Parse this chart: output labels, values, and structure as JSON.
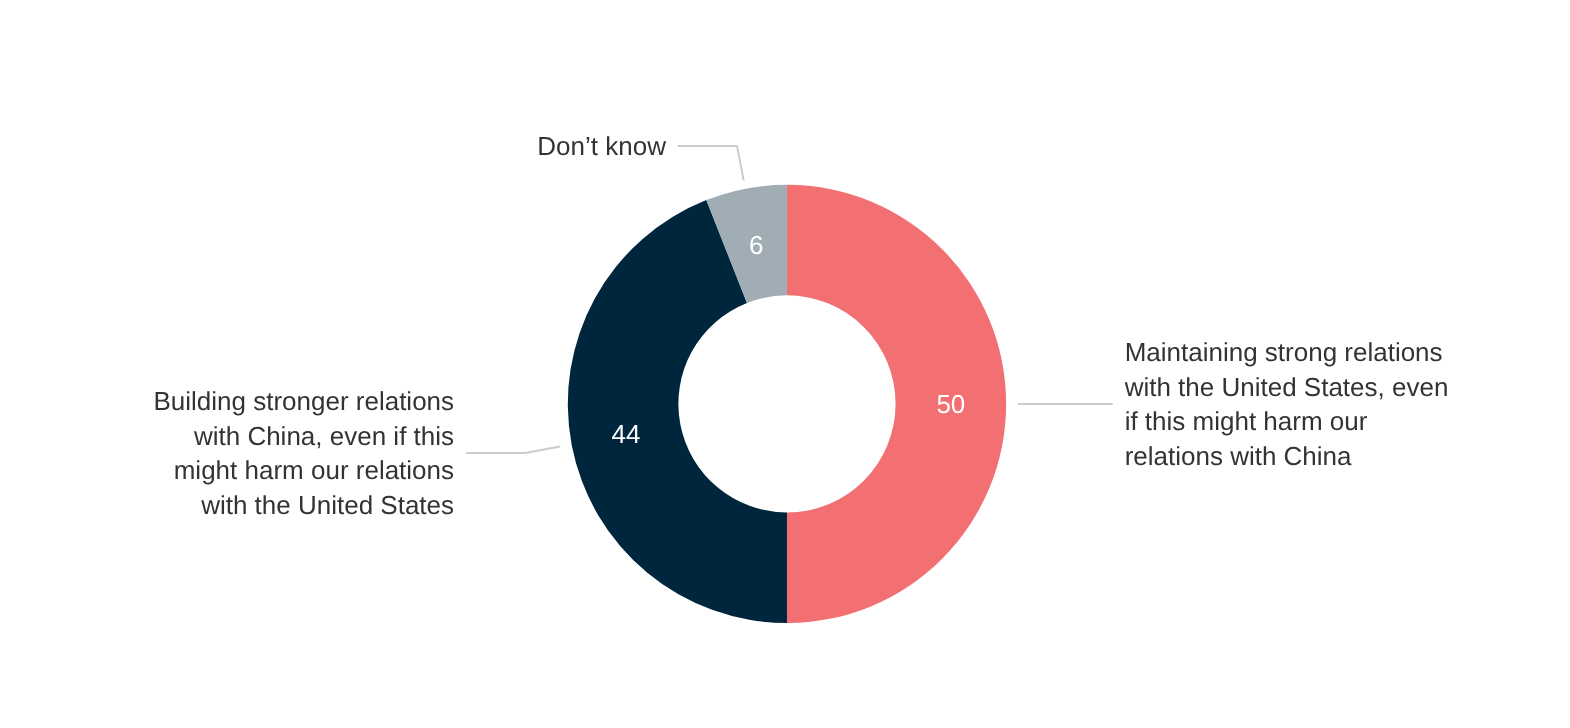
{
  "chart_data": {
    "type": "donut",
    "categories": [
      "Maintaining strong relations with the United States, even if this might harm our relations with China",
      "Building stronger relations with China, even if this might harm our relations with the United States",
      "Don’t know"
    ],
    "values": [
      50,
      44,
      6
    ],
    "colors": [
      "#f27072",
      "#00263d",
      "#a1adb4"
    ],
    "data_labels": true
  }
}
